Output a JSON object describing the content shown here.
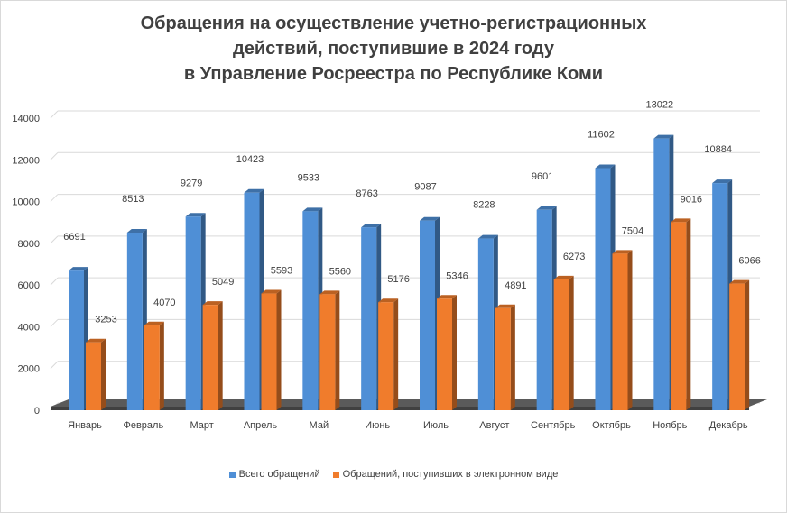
{
  "chart_data": {
    "type": "bar",
    "title_lines": [
      "Обращения на осуществление учетно-регистрационных",
      "действий, поступившие в 2024 году",
      "в Управление Росреестра по Республике Коми"
    ],
    "categories": [
      "Январь",
      "Февраль",
      "Март",
      "Апрель",
      "Май",
      "Июнь",
      "Июль",
      "Август",
      "Сентябрь",
      "Октябрь",
      "Ноябрь",
      "Декабрь"
    ],
    "series": [
      {
        "name": "Всего обращений",
        "color": "#4f8fd6",
        "values": [
          6691,
          8513,
          9279,
          10423,
          9533,
          8763,
          9087,
          8228,
          9601,
          11602,
          13022,
          10884
        ]
      },
      {
        "name": "Обращений, поступивших в электронном виде",
        "color": "#f07c2c",
        "values": [
          3253,
          4070,
          5049,
          5593,
          5560,
          5176,
          5346,
          4891,
          6273,
          7504,
          9016,
          6066
        ]
      }
    ],
    "yticks": [
      0,
      2000,
      4000,
      6000,
      8000,
      10000,
      12000,
      14000
    ],
    "ylim": [
      0,
      14000
    ],
    "grid": true,
    "legend_position": "bottom",
    "style": "3d-column"
  }
}
